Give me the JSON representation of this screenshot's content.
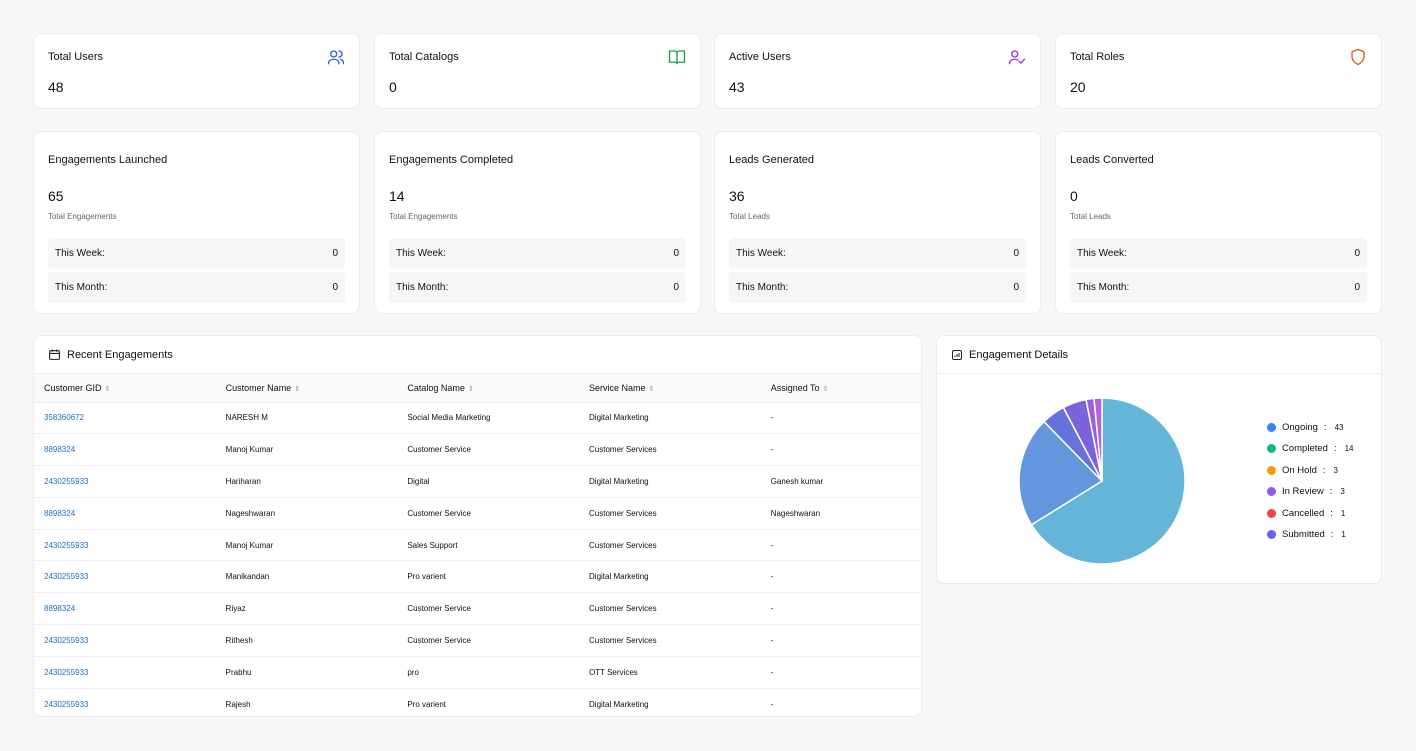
{
  "stats": [
    {
      "label": "Total Users",
      "value": "48",
      "icon": "users-icon",
      "color": "#2563eb"
    },
    {
      "label": "Total Catalogs",
      "value": "0",
      "icon": "book-open-icon",
      "color": "#16a34a"
    },
    {
      "label": "Active Users",
      "value": "43",
      "icon": "user-check-icon",
      "color": "#9333ea"
    },
    {
      "label": "Total Roles",
      "value": "20",
      "icon": "shield-icon",
      "color": "#ea580c"
    }
  ],
  "engagements": [
    {
      "title": "Engagements Launched",
      "value": "65",
      "sub": "Total Engagements",
      "week_label": "This Week:",
      "week": "0",
      "month_label": "This Month:",
      "month": "0"
    },
    {
      "title": "Engagements Completed",
      "value": "14",
      "sub": "Total Engagements",
      "week_label": "This Week:",
      "week": "0",
      "month_label": "This Month:",
      "month": "0"
    },
    {
      "title": "Leads Generated",
      "value": "36",
      "sub": "Total Leads",
      "week_label": "This Week:",
      "week": "0",
      "month_label": "This Month:",
      "month": "0"
    },
    {
      "title": "Leads Converted",
      "value": "0",
      "sub": "Total Leads",
      "week_label": "This Week:",
      "week": "0",
      "month_label": "This Month:",
      "month": "0"
    }
  ],
  "recent": {
    "title": "Recent Engagements",
    "columns": [
      "Customer GID",
      "Customer Name",
      "Catalog Name",
      "Service Name",
      "Assigned To"
    ],
    "rows": [
      [
        "358360672",
        "NARESH M",
        "Social Media Marketing",
        "Digital Marketing",
        "-"
      ],
      [
        "8898324",
        "Manoj Kumar",
        "Customer Service",
        "Customer Services",
        "-"
      ],
      [
        "2430255933",
        "Hariharan",
        "Digital",
        "Digital Marketing",
        "Ganesh kumar"
      ],
      [
        "8898324",
        "Nageshwaran",
        "Customer Service",
        "Customer Services",
        "Nageshwaran"
      ],
      [
        "2430255933",
        "Manoj Kumar",
        "Sales Support",
        "Customer Services",
        "-"
      ],
      [
        "2430255933",
        "Manikandan",
        "Pro varient",
        "Digital Marketing",
        "-"
      ],
      [
        "8898324",
        "Riyaz",
        "Customer Service",
        "Customer Services",
        "-"
      ],
      [
        "2430255933",
        "Rithesh",
        "Customer Service",
        "Customer Services",
        "-"
      ],
      [
        "2430255933",
        "Prabhu",
        "pro",
        "OTT Services",
        "-"
      ],
      [
        "2430255933",
        "Rajesh",
        "Pro varient",
        "Digital Marketing",
        "-"
      ]
    ]
  },
  "chart_data": {
    "type": "pie",
    "title": "Engagement Details",
    "slices": [
      {
        "name": "Ongoing",
        "value": 43,
        "legend_color": "#3b82f6",
        "slice_color": "#65b5d9"
      },
      {
        "name": "Completed",
        "value": 14,
        "legend_color": "#10b981",
        "slice_color": "#6396dc"
      },
      {
        "name": "On Hold",
        "value": 3,
        "legend_color": "#f59e0b",
        "slice_color": "#6672dc"
      },
      {
        "name": "In Review",
        "value": 3,
        "legend_color": "#8b5cf6",
        "slice_color": "#7d62dc"
      },
      {
        "name": "Cancelled",
        "value": 1,
        "legend_color": "#ef4444",
        "slice_color": "#9a60dc"
      },
      {
        "name": "Submitted",
        "value": 1,
        "legend_color": "#6366f1",
        "slice_color": "#b463dc"
      }
    ],
    "legend_placement": "right"
  }
}
